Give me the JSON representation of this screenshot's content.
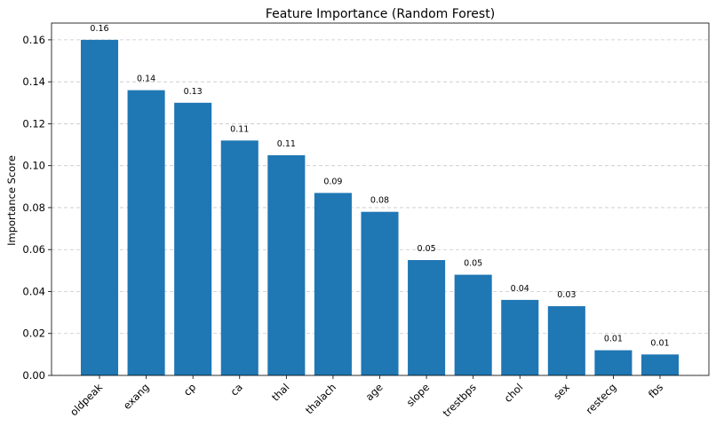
{
  "chart_data": {
    "type": "bar",
    "title": "Feature Importance (Random Forest)",
    "xlabel": "",
    "ylabel": "Importance Score",
    "categories": [
      "oldpeak",
      "exang",
      "cp",
      "ca",
      "thal",
      "thalach",
      "age",
      "slope",
      "trestbps",
      "chol",
      "sex",
      "restecg",
      "fbs"
    ],
    "values": [
      0.16,
      0.136,
      0.13,
      0.112,
      0.105,
      0.087,
      0.078,
      0.055,
      0.048,
      0.036,
      0.033,
      0.012,
      0.01
    ],
    "data_labels": [
      "0.16",
      "0.14",
      "0.13",
      "0.11",
      "0.11",
      "0.09",
      "0.08",
      "0.05",
      "0.05",
      "0.04",
      "0.03",
      "0.01",
      "0.01"
    ],
    "yticks": [
      "0.00",
      "0.02",
      "0.04",
      "0.06",
      "0.08",
      "0.10",
      "0.12",
      "0.14",
      "0.16"
    ],
    "ylim": [
      0,
      0.168
    ],
    "grid": "y",
    "bar_color": "#1f77b4"
  }
}
